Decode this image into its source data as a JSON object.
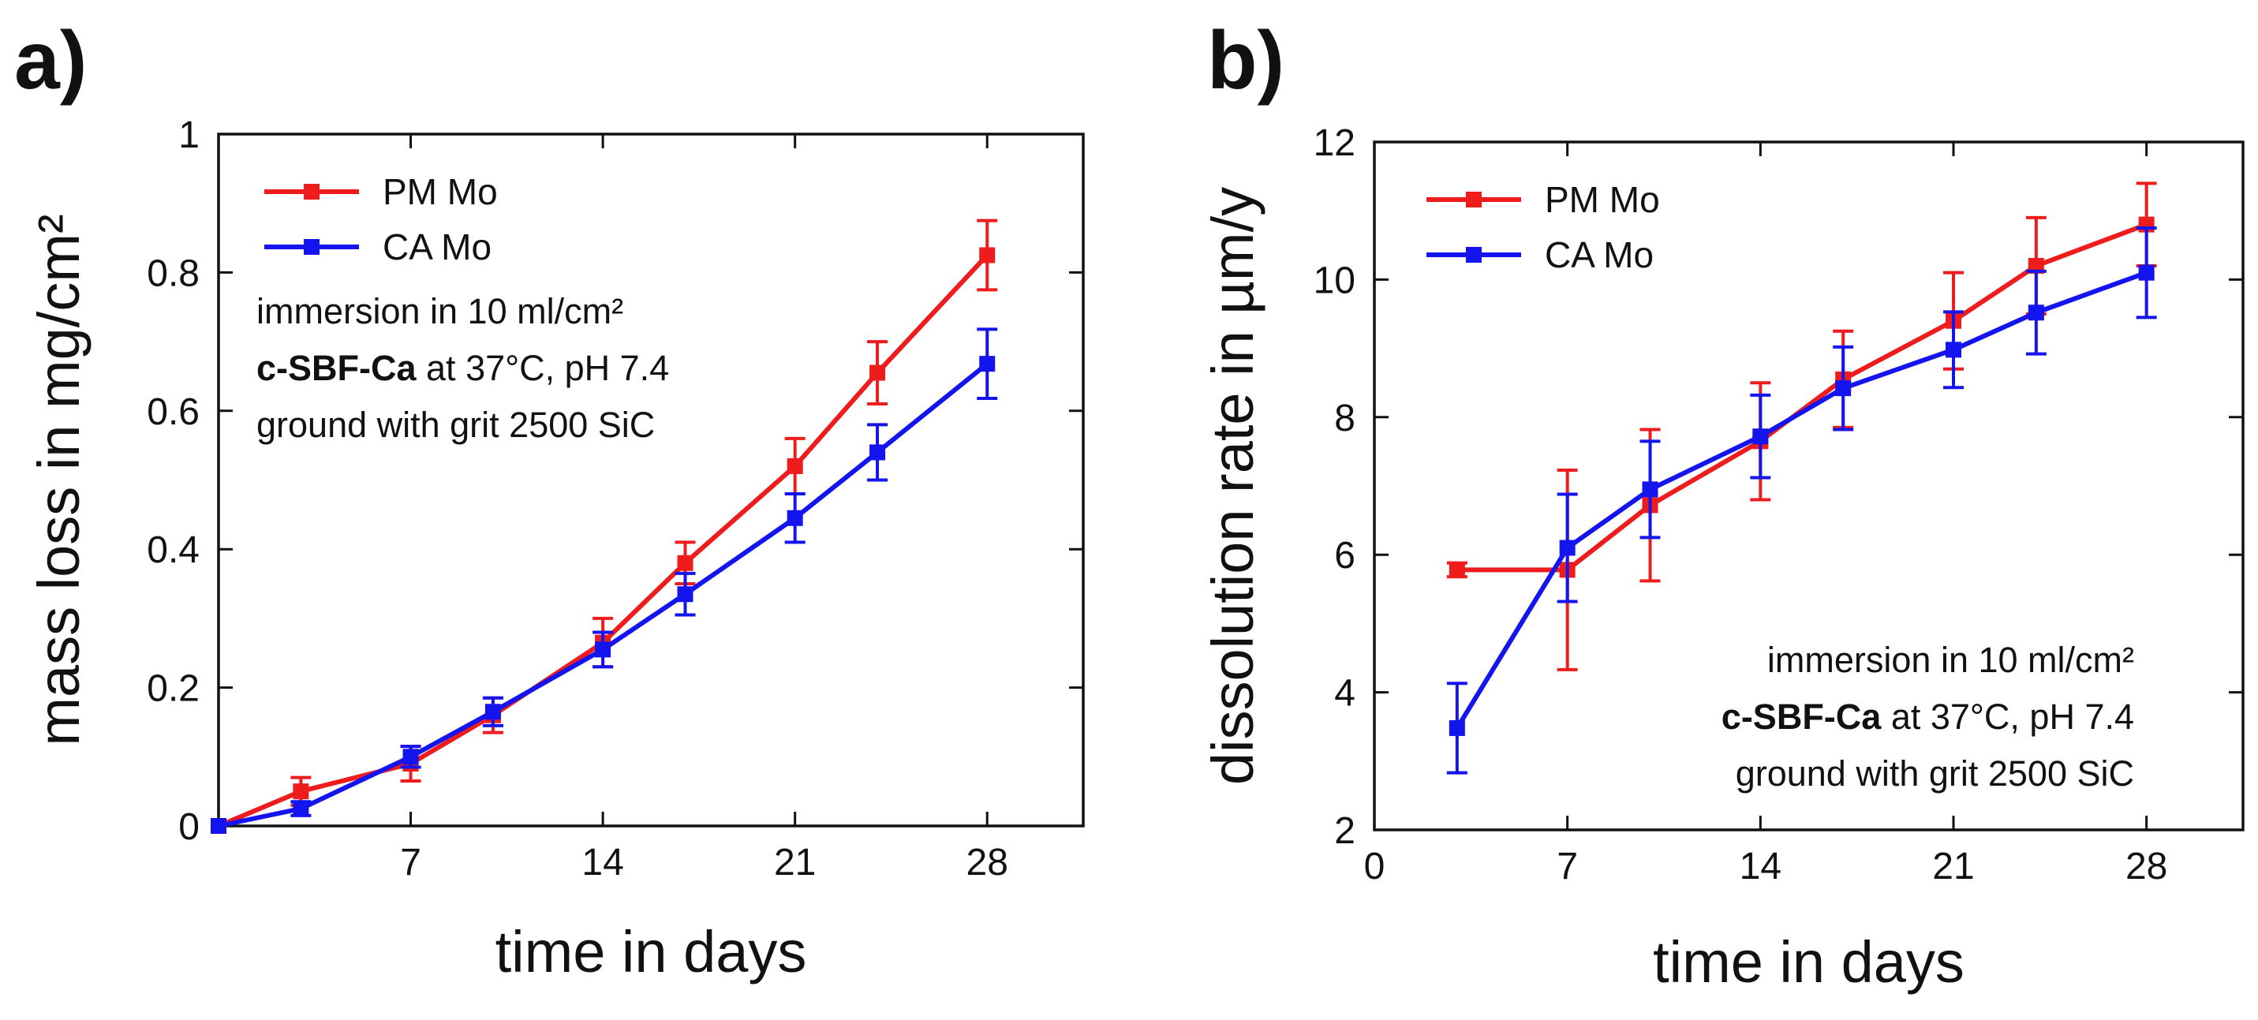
{
  "chart_data": [
    {
      "panel": "a)",
      "type": "line",
      "xlabel": "time in days",
      "ylabel": "mass loss in mg/cm²",
      "xlim": [
        0,
        31.5
      ],
      "ylim": [
        0,
        1
      ],
      "xticks": [
        7,
        14,
        21,
        28
      ],
      "xtick_labels": [
        "7",
        "14",
        "21",
        "28"
      ],
      "yticks": [
        0,
        0.2,
        0.4,
        0.6,
        0.8,
        1
      ],
      "ytick_labels": [
        "0",
        "0.2",
        "0.4",
        "0.6",
        "0.8",
        "1"
      ],
      "grid": false,
      "legend_position": "top-left",
      "series": [
        {
          "name": "PM Mo",
          "color": "#ee1c1c",
          "x": [
            0,
            3,
            7,
            10,
            14,
            17,
            21,
            24,
            28
          ],
          "y": [
            0,
            0.05,
            0.09,
            0.16,
            0.265,
            0.38,
            0.52,
            0.655,
            0.825
          ],
          "err": [
            0,
            0.02,
            0.025,
            0.025,
            0.035,
            0.03,
            0.04,
            0.045,
            0.05
          ]
        },
        {
          "name": "CA Mo",
          "color": "#1414ee",
          "x": [
            0,
            3,
            7,
            10,
            14,
            17,
            21,
            24,
            28
          ],
          "y": [
            0,
            0.025,
            0.1,
            0.165,
            0.255,
            0.335,
            0.445,
            0.54,
            0.668
          ],
          "err": [
            0,
            0.01,
            0.015,
            0.02,
            0.025,
            0.03,
            0.035,
            0.04,
            0.05
          ]
        }
      ],
      "annotations": [
        {
          "text": "immersion in 10 ml/cm²"
        },
        {
          "bold": "c-SBF-Ca",
          "text": " at 37°C, pH 7.4"
        },
        {
          "text": "ground with grit 2500 SiC"
        }
      ]
    },
    {
      "panel": "b)",
      "type": "line",
      "xlabel": "time in days",
      "ylabel": "dissolution rate in µm/y",
      "xlim": [
        0,
        31.5
      ],
      "ylim": [
        2,
        12
      ],
      "xticks": [
        0,
        7,
        14,
        21,
        28
      ],
      "xtick_labels": [
        "0",
        "7",
        "14",
        "21",
        "28"
      ],
      "yticks": [
        2,
        4,
        6,
        8,
        10,
        12
      ],
      "ytick_labels": [
        "2",
        "4",
        "6",
        "8",
        "10",
        "12"
      ],
      "grid": false,
      "legend_position": "top-left",
      "series": [
        {
          "name": "PM Mo",
          "color": "#ee1c1c",
          "x": [
            3,
            7,
            10,
            14,
            17,
            21,
            24,
            28
          ],
          "y": [
            5.78,
            5.78,
            6.72,
            7.65,
            8.55,
            9.4,
            10.2,
            10.8
          ],
          "err": [
            0.1,
            1.45,
            1.1,
            0.85,
            0.7,
            0.7,
            0.7,
            0.6
          ]
        },
        {
          "name": "CA Mo",
          "color": "#1414ee",
          "x": [
            3,
            7,
            10,
            14,
            17,
            21,
            24,
            28
          ],
          "y": [
            3.48,
            6.1,
            6.95,
            7.72,
            8.42,
            8.98,
            9.52,
            10.1
          ],
          "err": [
            0.65,
            0.78,
            0.7,
            0.6,
            0.6,
            0.55,
            0.6,
            0.65
          ]
        }
      ],
      "annotations": [
        {
          "text": "immersion in 10 ml/cm²"
        },
        {
          "bold": "c-SBF-Ca",
          "text": " at 37°C, pH 7.4"
        },
        {
          "text": "ground with grit 2500 SiC"
        }
      ]
    }
  ]
}
